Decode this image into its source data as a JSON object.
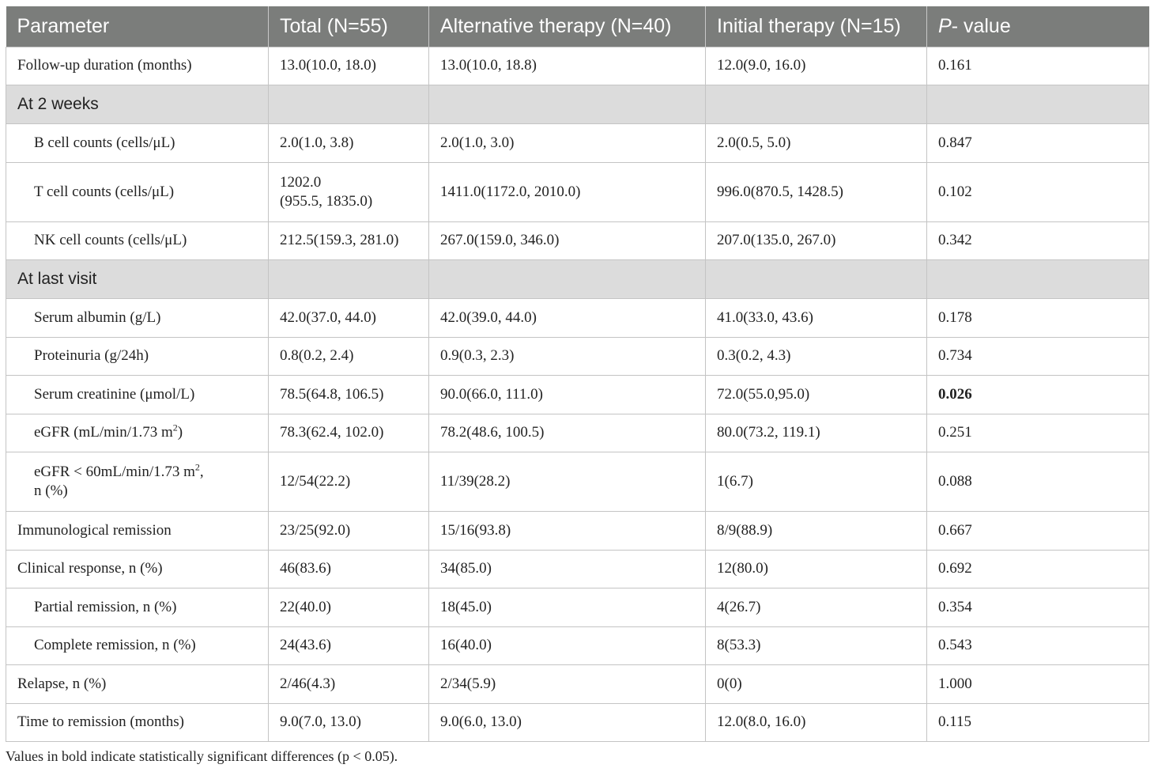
{
  "headers": {
    "parameter": "Parameter",
    "total": "Total (N=55)",
    "alt": "Alternative therapy (N=40)",
    "init": "Initial therapy (N=15)",
    "p_italic": "P",
    "p_rest": "- value"
  },
  "rows": {
    "followup": {
      "label": "Follow-up duration (months)",
      "total": "13.0(10.0, 18.0)",
      "alt": "13.0(10.0, 18.8)",
      "init": "12.0(9.0, 16.0)",
      "p": "0.161"
    },
    "sec_2w": "At 2 weeks",
    "bcell": {
      "label": "B cell counts (cells/μL)",
      "total": "2.0(1.0, 3.8)",
      "alt": "2.0(1.0, 3.0)",
      "init": "2.0(0.5, 5.0)",
      "p": "0.847"
    },
    "tcell": {
      "label": "T cell counts (cells/μL)",
      "total_l1": "1202.0",
      "total_l2": "(955.5, 1835.0)",
      "alt": "1411.0(1172.0, 2010.0)",
      "init": "996.0(870.5, 1428.5)",
      "p": "0.102"
    },
    "nkcell": {
      "label": "NK cell counts (cells/μL)",
      "total": "212.5(159.3, 281.0)",
      "alt": "267.0(159.0, 346.0)",
      "init": "207.0(135.0, 267.0)",
      "p": "0.342"
    },
    "sec_last": "At last visit",
    "albumin": {
      "label": "Serum albumin (g/L)",
      "total": "42.0(37.0, 44.0)",
      "alt": "42.0(39.0, 44.0)",
      "init": "41.0(33.0, 43.6)",
      "p": "0.178"
    },
    "protein": {
      "label": "Proteinuria (g/24h)",
      "total": "0.8(0.2, 2.4)",
      "alt": "0.9(0.3, 2.3)",
      "init": "0.3(0.2, 4.3)",
      "p": "0.734"
    },
    "creat": {
      "label": "Serum creatinine (μmol/L)",
      "total": "78.5(64.8, 106.5)",
      "alt": "90.0(66.0, 111.0)",
      "init": "72.0(55.0,95.0)",
      "p": "0.026"
    },
    "egfr": {
      "label_pre": "eGFR (mL/min/1.73 m",
      "label_sup": "2",
      "label_post": ")",
      "total": "78.3(62.4, 102.0)",
      "alt": "78.2(48.6, 100.5)",
      "init": "80.0(73.2, 119.1)",
      "p": "0.251"
    },
    "egfr60": {
      "label_pre": "eGFR < 60mL/min/1.73 m",
      "label_sup": "2",
      "label_post": ",",
      "label_l2": "n (%)",
      "total": "12/54(22.2)",
      "alt": "11/39(28.2)",
      "init": "1(6.7)",
      "p": "0.088"
    },
    "immuno": {
      "label": "Immunological remission",
      "total": "23/25(92.0)",
      "alt": "15/16(93.8)",
      "init": "8/9(88.9)",
      "p": "0.667"
    },
    "clinical": {
      "label": "Clinical response, n (%)",
      "total": "46(83.6)",
      "alt": "34(85.0)",
      "init": "12(80.0)",
      "p": "0.692"
    },
    "partial": {
      "label": "Partial remission, n (%)",
      "total": "22(40.0)",
      "alt": "18(45.0)",
      "init": "4(26.7)",
      "p": "0.354"
    },
    "complete": {
      "label": "Complete remission, n (%)",
      "total": "24(43.6)",
      "alt": "16(40.0)",
      "init": "8(53.3)",
      "p": "0.543"
    },
    "relapse": {
      "label": "Relapse, n (%)",
      "total": "2/46(4.3)",
      "alt": "2/34(5.9)",
      "init": "0(0)",
      "p": "1.000"
    },
    "time": {
      "label": "Time to remission (months)",
      "total": "9.0(7.0, 13.0)",
      "alt": "9.0(6.0, 13.0)",
      "init": "12.0(8.0, 16.0)",
      "p": "0.115"
    }
  },
  "footnote": "Values in bold indicate statistically significant differences (p < 0.05)."
}
